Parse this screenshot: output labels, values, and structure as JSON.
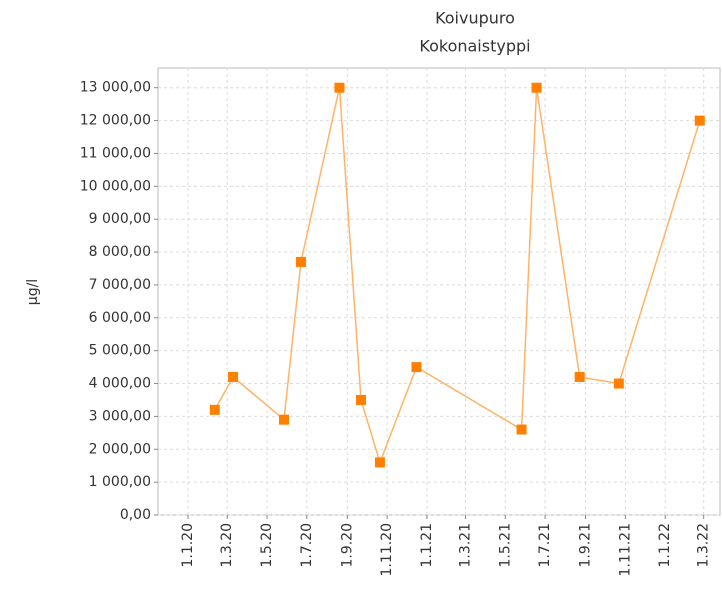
{
  "chart_data": {
    "type": "line",
    "title": "Koivupuro",
    "subtitle": "Kokonaistyppi",
    "y_label": "µg/l",
    "x": [
      "2020-02-11",
      "2020-03-10",
      "2020-05-27",
      "2020-06-22",
      "2020-08-20",
      "2020-09-22",
      "2020-10-21",
      "2020-12-16",
      "2021-05-26",
      "2021-06-18",
      "2021-08-23",
      "2021-10-22",
      "2022-02-23"
    ],
    "series": [
      {
        "name": "Kokonaistyppi",
        "line_color": "#ffb366",
        "color": "#ff8000",
        "values": [
          3200,
          4200,
          2900,
          7700,
          13000,
          3500,
          1600,
          4500,
          2600,
          13000,
          4200,
          4000,
          12000
        ]
      }
    ],
    "xlim": [
      "2019-11-16",
      "2022-03-26"
    ],
    "xticks": [
      {
        "value": "2020-01-01",
        "label": "1.1.20"
      },
      {
        "value": "2020-03-01",
        "label": "1.3.20"
      },
      {
        "value": "2020-05-01",
        "label": "1.5.20"
      },
      {
        "value": "2020-07-01",
        "label": "1.7.20"
      },
      {
        "value": "2020-09-01",
        "label": "1.9.20"
      },
      {
        "value": "2020-11-01",
        "label": "1.11.20"
      },
      {
        "value": "2021-01-01",
        "label": "1.1.21"
      },
      {
        "value": "2021-03-01",
        "label": "1.3.21"
      },
      {
        "value": "2021-05-01",
        "label": "1.5.21"
      },
      {
        "value": "2021-07-01",
        "label": "1.7.21"
      },
      {
        "value": "2021-09-01",
        "label": "1.9.21"
      },
      {
        "value": "2021-11-01",
        "label": "1.11.21"
      },
      {
        "value": "2022-01-01",
        "label": "1.1.22"
      },
      {
        "value": "2022-03-01",
        "label": "1.3.22"
      }
    ],
    "ylim": [
      0,
      13600
    ],
    "yticks": [
      {
        "value": 0,
        "label": "0,00"
      },
      {
        "value": 1000,
        "label": "1 000,00"
      },
      {
        "value": 2000,
        "label": "2 000,00"
      },
      {
        "value": 3000,
        "label": "3 000,00"
      },
      {
        "value": 4000,
        "label": "4 000,00"
      },
      {
        "value": 5000,
        "label": "5 000,00"
      },
      {
        "value": 6000,
        "label": "6 000,00"
      },
      {
        "value": 7000,
        "label": "7 000,00"
      },
      {
        "value": 8000,
        "label": "8 000,00"
      },
      {
        "value": 9000,
        "label": "9 000,00"
      },
      {
        "value": 10000,
        "label": "10 000,00"
      },
      {
        "value": 11000,
        "label": "11 000,00"
      },
      {
        "value": 12000,
        "label": "12 000,00"
      },
      {
        "value": 13000,
        "label": "13 000,00"
      }
    ],
    "grid": true
  }
}
